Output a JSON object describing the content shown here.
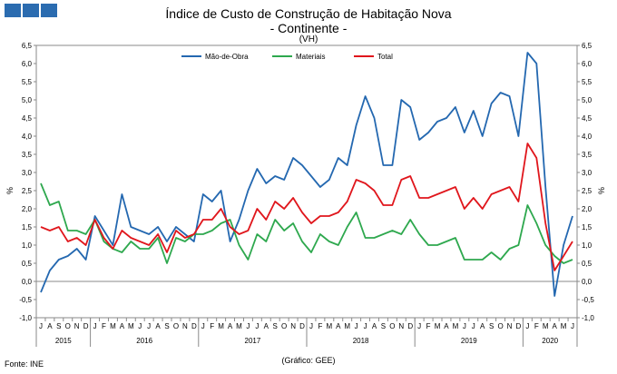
{
  "chart_data": {
    "type": "line",
    "title": "Índice de Custo de Construção de Habitação Nova",
    "subtitle": "- Continente -",
    "unit": "(VH)",
    "ylabel": "%",
    "ylim": [
      -1.0,
      6.5
    ],
    "yticks": [
      "6,5",
      "6,0",
      "5,5",
      "5,0",
      "4,5",
      "4,0",
      "3,5",
      "3,0",
      "2,5",
      "2,0",
      "1,5",
      "1,0",
      "0,5",
      "0,0",
      "-0,5",
      "-1,0"
    ],
    "grid": false,
    "legend_position": "top",
    "months": [
      "J",
      "A",
      "S",
      "O",
      "N",
      "D",
      "J",
      "F",
      "M",
      "A",
      "M",
      "J",
      "J",
      "A",
      "S",
      "O",
      "N",
      "D",
      "J",
      "F",
      "M",
      "A",
      "M",
      "J",
      "J",
      "A",
      "S",
      "O",
      "N",
      "D",
      "J",
      "F",
      "M",
      "A",
      "M",
      "J",
      "J",
      "A",
      "S",
      "O",
      "N",
      "D",
      "J",
      "F",
      "M",
      "A",
      "M",
      "J",
      "J",
      "A",
      "S",
      "O",
      "N",
      "D",
      "J",
      "F",
      "M",
      "A",
      "M",
      "J"
    ],
    "years": [
      {
        "label": "2015",
        "start": 0,
        "count": 6
      },
      {
        "label": "2016",
        "start": 6,
        "count": 12
      },
      {
        "label": "2017",
        "start": 18,
        "count": 12
      },
      {
        "label": "2018",
        "start": 30,
        "count": 12
      },
      {
        "label": "2019",
        "start": 42,
        "count": 12
      },
      {
        "label": "2020",
        "start": 54,
        "count": 6
      }
    ],
    "series": [
      {
        "name": "Mão-de-Obra",
        "color": "#2468b0",
        "values": [
          -0.3,
          0.3,
          0.6,
          0.7,
          0.9,
          0.6,
          1.8,
          1.4,
          1.0,
          2.4,
          1.5,
          1.4,
          1.3,
          1.5,
          1.1,
          1.5,
          1.3,
          1.1,
          2.4,
          2.2,
          2.5,
          1.1,
          1.7,
          2.5,
          3.1,
          2.7,
          2.9,
          2.8,
          3.4,
          3.2,
          2.9,
          2.6,
          2.8,
          3.4,
          3.2,
          4.3,
          5.1,
          4.5,
          3.2,
          3.2,
          5.0,
          4.8,
          3.9,
          4.1,
          4.4,
          4.5,
          4.8,
          4.1,
          4.7,
          4.0,
          4.9,
          5.2,
          5.1,
          4.0,
          6.3,
          6.0,
          2.6,
          -0.4,
          1.0,
          1.8
        ]
      },
      {
        "name": "Materiais",
        "color": "#2ea84e",
        "values": [
          2.7,
          2.1,
          2.2,
          1.4,
          1.4,
          1.3,
          1.7,
          1.1,
          0.9,
          0.8,
          1.1,
          0.9,
          0.9,
          1.2,
          0.5,
          1.2,
          1.1,
          1.3,
          1.3,
          1.4,
          1.6,
          1.7,
          1.0,
          0.6,
          1.3,
          1.1,
          1.7,
          1.4,
          1.6,
          1.1,
          0.8,
          1.3,
          1.1,
          1.0,
          1.5,
          1.9,
          1.2,
          1.2,
          1.3,
          1.4,
          1.3,
          1.7,
          1.3,
          1.0,
          1.0,
          1.1,
          1.2,
          0.6,
          0.6,
          0.6,
          0.8,
          0.6,
          0.9,
          1.0,
          2.1,
          1.6,
          1.0,
          0.7,
          0.5,
          0.6
        ]
      },
      {
        "name": "Total",
        "color": "#e0161c",
        "values": [
          1.5,
          1.4,
          1.5,
          1.1,
          1.2,
          1.0,
          1.7,
          1.2,
          0.9,
          1.4,
          1.2,
          1.1,
          1.0,
          1.3,
          0.8,
          1.4,
          1.2,
          1.3,
          1.7,
          1.7,
          2.0,
          1.5,
          1.3,
          1.4,
          2.0,
          1.7,
          2.2,
          2.0,
          2.3,
          1.9,
          1.6,
          1.8,
          1.8,
          1.9,
          2.2,
          2.8,
          2.7,
          2.5,
          2.1,
          2.1,
          2.8,
          2.9,
          2.3,
          2.3,
          2.4,
          2.5,
          2.6,
          2.0,
          2.3,
          2.0,
          2.4,
          2.5,
          2.6,
          2.2,
          3.8,
          3.4,
          1.6,
          0.3,
          0.7,
          1.1
        ]
      }
    ]
  },
  "footer": {
    "source": "Fonte: INE",
    "credit": "(Gráfico: GEE)"
  },
  "logo_color": "#2b6cb0"
}
